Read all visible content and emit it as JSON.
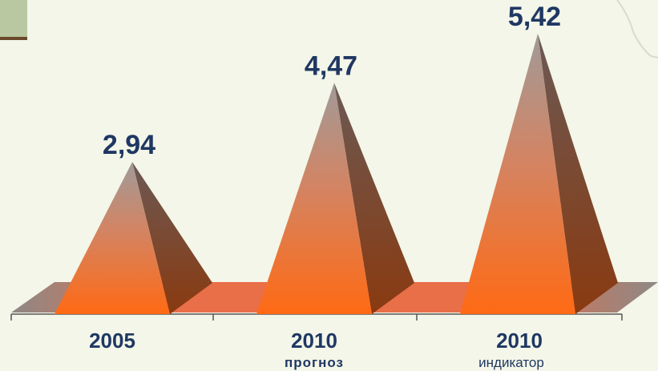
{
  "chart_data": {
    "type": "bar",
    "categories": [
      "2005",
      "2010",
      "2010"
    ],
    "subcategories": [
      "",
      "прогноз",
      "индикатор"
    ],
    "values": [
      2.94,
      4.47,
      5.42
    ],
    "value_labels": [
      "2,94",
      "4,47",
      "5,42"
    ],
    "title": "",
    "xlabel": "",
    "ylabel": "",
    "ylim": [
      0,
      5.42
    ],
    "grid": false,
    "legend": "none",
    "colors": {
      "pyramid_top": "#a29a94",
      "pyramid_bottom": "#ff6b1a",
      "pyramid_side": "#7a3c1c",
      "floor": "#e9704a",
      "floor_edge": "#8f8e8e",
      "label": "#1f3763"
    }
  }
}
